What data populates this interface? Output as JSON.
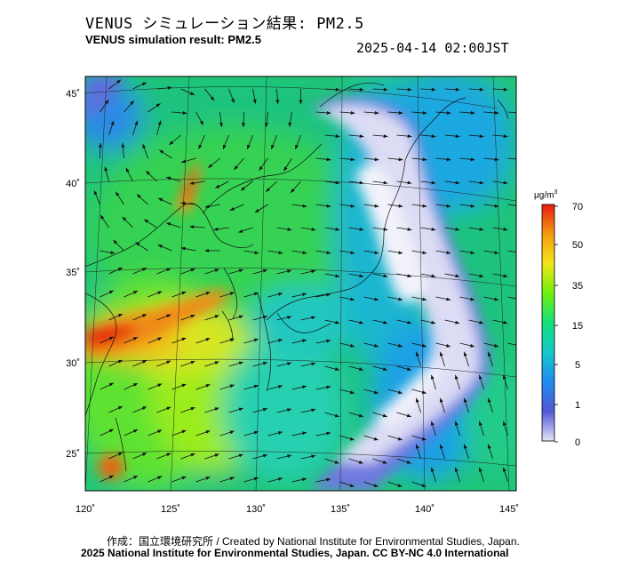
{
  "header": {
    "title_jp": "VENUS シミュレーション結果: PM2.5",
    "title_en": "VENUS simulation result: PM2.5",
    "timestamp": "2025-04-14 02:00JST"
  },
  "map": {
    "lon_labels": [
      "120˚",
      "125˚",
      "130˚",
      "135˚",
      "140˚",
      "145˚"
    ],
    "lat_labels": [
      "45˚",
      "40˚",
      "35˚",
      "30˚",
      "25˚"
    ]
  },
  "colorbar": {
    "unit": "μg/m",
    "unit_sup": "3",
    "ticks": [
      "70",
      "50",
      "35",
      "15",
      "5",
      "1",
      "0"
    ],
    "stops": [
      "#e3e3f7",
      "#5358d6",
      "#1d8cf0",
      "#17c8cc",
      "#14e07a",
      "#6df00e",
      "#f2e61a",
      "#f59a12",
      "#e61a10"
    ]
  },
  "footer": {
    "credit_1": "作成：国立環境研究所 / Created by National Institute for Environmental Studies, Japan.",
    "credit_2": "2025 National Institute for Environmental Studies, Japan. CC BY-NC 4.0 International"
  }
}
